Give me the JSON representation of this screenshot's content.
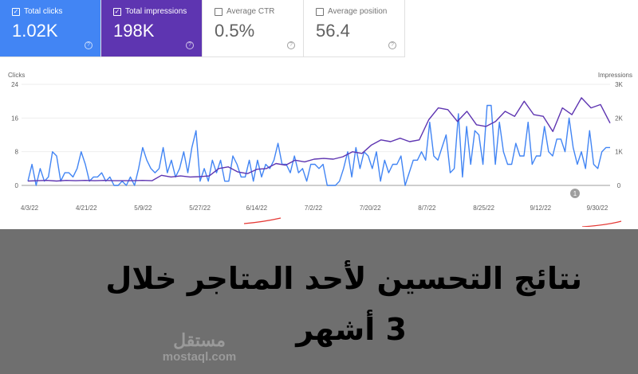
{
  "cards": [
    {
      "label": "Total clicks",
      "value": "1.02K",
      "checked": true,
      "color": "#4285f4"
    },
    {
      "label": "Total impressions",
      "value": "198K",
      "checked": true,
      "color": "#5e35b1"
    },
    {
      "label": "Average CTR",
      "value": "0.5%",
      "checked": false
    },
    {
      "label": "Average position",
      "value": "56.4",
      "checked": false
    }
  ],
  "help_glyph": "?",
  "check_glyph": "✓",
  "chart_data": {
    "type": "line",
    "left_axis_label": "Clicks",
    "right_axis_label": "Impressions",
    "left_ticks": [
      "0",
      "8",
      "16",
      "24"
    ],
    "left_ylim": [
      0,
      24
    ],
    "right_ticks": [
      "0",
      "1K",
      "2K",
      "3K"
    ],
    "right_ylim": [
      0,
      3000
    ],
    "x_ticks": [
      "4/3/22",
      "4/21/22",
      "5/9/22",
      "5/27/22",
      "6/14/22",
      "7/2/22",
      "7/20/22",
      "8/7/22",
      "8/25/22",
      "9/12/22",
      "9/30/22"
    ],
    "grid": true,
    "annotation": "1",
    "series": [
      {
        "name": "Clicks",
        "axis": "left",
        "color": "#4285f4",
        "values": [
          1,
          5,
          0,
          4,
          1,
          2,
          8,
          7,
          1,
          3,
          3,
          2,
          4,
          8,
          5,
          1,
          2,
          2,
          3,
          1,
          2,
          0,
          0,
          1,
          0,
          2,
          0,
          4,
          9,
          6,
          4,
          3,
          4,
          9,
          3,
          6,
          2,
          4,
          8,
          3,
          9,
          13,
          1,
          4,
          1,
          6,
          3,
          6,
          1,
          1,
          7,
          5,
          2,
          2,
          6,
          1,
          6,
          2,
          5,
          4,
          6,
          10,
          5,
          5,
          3,
          7,
          3,
          4,
          1,
          5,
          5,
          4,
          5,
          0,
          0,
          0,
          1,
          4,
          8,
          2,
          9,
          4,
          8,
          7,
          4,
          8,
          1,
          6,
          3,
          5,
          5,
          7,
          0,
          3,
          6,
          6,
          8,
          6,
          15,
          7,
          6,
          9,
          12,
          3,
          4,
          17,
          2,
          14,
          5,
          13,
          12,
          5,
          19,
          19,
          5,
          15,
          8,
          5,
          5,
          10,
          7,
          7,
          15,
          5,
          7,
          7,
          14,
          8,
          7,
          11,
          11,
          8,
          16,
          9,
          5,
          8,
          4,
          13,
          5,
          4,
          8,
          9,
          9
        ]
      },
      {
        "name": "Impressions",
        "axis": "right",
        "color": "#5e35b1",
        "values": [
          130,
          140,
          150,
          130,
          150,
          140,
          150,
          140,
          150,
          140,
          140,
          140,
          150,
          140,
          300,
          250,
          280,
          250,
          260,
          280,
          500,
          550,
          400,
          350,
          480,
          500,
          650,
          600,
          750,
          700,
          780,
          800,
          780,
          850,
          1000,
          950,
          1200,
          1350,
          1300,
          1400,
          1300,
          1350,
          1950,
          2300,
          2250,
          1900,
          2200,
          1800,
          1750,
          1900,
          2200,
          2050,
          2500,
          2100,
          2050,
          1600,
          2300,
          2100,
          2600,
          2300,
          2400,
          1850
        ]
      }
    ]
  },
  "overlay": {
    "title_line1": "نتائج التحسين لأحد المتاجر خلال",
    "title_line2": "3 أشهر",
    "watermark_logo": "مستقل",
    "watermark_url": "mostaql.com"
  }
}
